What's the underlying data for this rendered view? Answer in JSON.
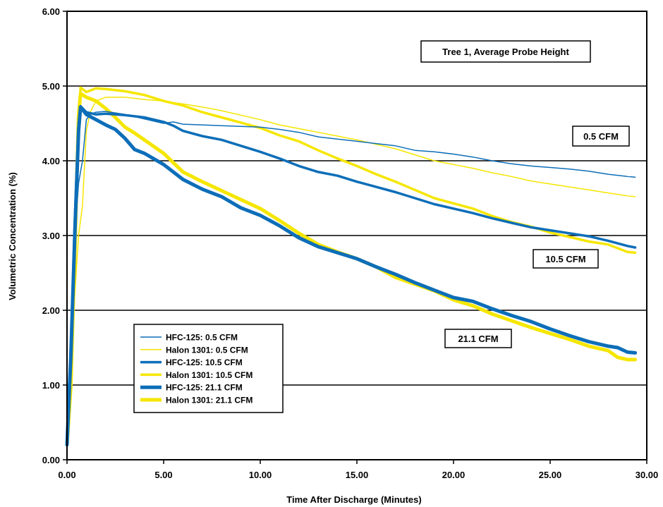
{
  "chart_data": {
    "type": "line",
    "xlabel": "Time After Discharge (Minutes)",
    "ylabel": "Volumetric Concentration (%)",
    "xlim": [
      0,
      30
    ],
    "ylim": [
      0,
      6
    ],
    "x_ticks": [
      "0.00",
      "5.00",
      "10.00",
      "15.00",
      "20.00",
      "25.00",
      "30.00"
    ],
    "y_ticks": [
      "0.00",
      "1.00",
      "2.00",
      "3.00",
      "4.00",
      "5.00",
      "6.00"
    ],
    "grid": "horizontal",
    "legend_position": "bottom-left",
    "annotations": [
      "Tree 1, Average Probe Height",
      "0.5 CFM",
      "10.5 CFM",
      "21.1 CFM"
    ],
    "colors": {
      "hfc": "#0d6eb8",
      "halon": "#f5e600"
    },
    "series": [
      {
        "name": "HFC-125: 0.5 CFM",
        "color": "#0d6eb8",
        "weight": "thin",
        "points": [
          [
            0,
            0.2
          ],
          [
            0.2,
            1.5
          ],
          [
            0.4,
            3.0
          ],
          [
            0.6,
            3.7
          ],
          [
            0.8,
            4.0
          ],
          [
            1.0,
            4.55
          ],
          [
            1.2,
            4.62
          ],
          [
            1.5,
            4.65
          ],
          [
            2,
            4.66
          ],
          [
            3,
            4.62
          ],
          [
            4,
            4.56
          ],
          [
            5,
            4.5
          ],
          [
            5.5,
            4.52
          ],
          [
            6,
            4.49
          ],
          [
            7,
            4.48
          ],
          [
            8,
            4.47
          ],
          [
            9,
            4.46
          ],
          [
            10,
            4.45
          ],
          [
            11,
            4.42
          ],
          [
            12,
            4.38
          ],
          [
            13,
            4.32
          ],
          [
            14,
            4.29
          ],
          [
            15,
            4.26
          ],
          [
            16,
            4.23
          ],
          [
            17,
            4.2
          ],
          [
            18,
            4.14
          ],
          [
            19,
            4.12
          ],
          [
            20,
            4.09
          ],
          [
            21,
            4.05
          ],
          [
            22,
            4.0
          ],
          [
            23,
            3.96
          ],
          [
            24,
            3.93
          ],
          [
            25,
            3.91
          ],
          [
            26,
            3.89
          ],
          [
            27,
            3.86
          ],
          [
            28,
            3.82
          ],
          [
            29,
            3.79
          ],
          [
            29.4,
            3.78
          ]
        ]
      },
      {
        "name": "Halon 1301: 0.5 CFM",
        "color": "#f5e600",
        "weight": "thin",
        "points": [
          [
            0,
            0.2
          ],
          [
            0.2,
            1.0
          ],
          [
            0.4,
            2.2
          ],
          [
            0.6,
            3.0
          ],
          [
            0.8,
            3.4
          ],
          [
            1.0,
            4.4
          ],
          [
            1.2,
            4.65
          ],
          [
            1.5,
            4.8
          ],
          [
            2,
            4.85
          ],
          [
            3,
            4.85
          ],
          [
            4,
            4.82
          ],
          [
            5,
            4.8
          ],
          [
            6,
            4.76
          ],
          [
            7,
            4.72
          ],
          [
            8,
            4.67
          ],
          [
            9,
            4.61
          ],
          [
            10,
            4.55
          ],
          [
            11,
            4.48
          ],
          [
            12,
            4.43
          ],
          [
            13,
            4.38
          ],
          [
            14,
            4.33
          ],
          [
            15,
            4.28
          ],
          [
            16,
            4.22
          ],
          [
            17,
            4.16
          ],
          [
            18,
            4.08
          ],
          [
            19,
            4.0
          ],
          [
            20,
            3.95
          ],
          [
            21,
            3.9
          ],
          [
            22,
            3.84
          ],
          [
            23,
            3.79
          ],
          [
            24,
            3.73
          ],
          [
            25,
            3.69
          ],
          [
            26,
            3.65
          ],
          [
            27,
            3.61
          ],
          [
            28,
            3.57
          ],
          [
            29,
            3.53
          ],
          [
            29.4,
            3.52
          ]
        ]
      },
      {
        "name": "HFC-125: 10.5 CFM",
        "color": "#0d6eb8",
        "weight": "medium",
        "points": [
          [
            0,
            0.2
          ],
          [
            0.2,
            1.5
          ],
          [
            0.4,
            3.2
          ],
          [
            0.6,
            4.5
          ],
          [
            0.7,
            4.73
          ],
          [
            1,
            4.65
          ],
          [
            1.5,
            4.62
          ],
          [
            2,
            4.63
          ],
          [
            3,
            4.61
          ],
          [
            4,
            4.58
          ],
          [
            5,
            4.52
          ],
          [
            5.5,
            4.47
          ],
          [
            6,
            4.4
          ],
          [
            7,
            4.33
          ],
          [
            8,
            4.28
          ],
          [
            9,
            4.2
          ],
          [
            10,
            4.12
          ],
          [
            11,
            4.03
          ],
          [
            12,
            3.93
          ],
          [
            13,
            3.85
          ],
          [
            14,
            3.8
          ],
          [
            15,
            3.72
          ],
          [
            16,
            3.65
          ],
          [
            17,
            3.58
          ],
          [
            18,
            3.5
          ],
          [
            19,
            3.42
          ],
          [
            20,
            3.36
          ],
          [
            21,
            3.3
          ],
          [
            22,
            3.23
          ],
          [
            23,
            3.17
          ],
          [
            24,
            3.11
          ],
          [
            25,
            3.07
          ],
          [
            26,
            3.03
          ],
          [
            27,
            2.99
          ],
          [
            28,
            2.93
          ],
          [
            29,
            2.86
          ],
          [
            29.4,
            2.84
          ]
        ]
      },
      {
        "name": "Halon 1301: 10.5 CFM",
        "color": "#f5e600",
        "weight": "medium",
        "points": [
          [
            0,
            0.25
          ],
          [
            0.2,
            1.2
          ],
          [
            0.4,
            2.5
          ],
          [
            0.6,
            4.4
          ],
          [
            0.7,
            4.98
          ],
          [
            1,
            4.92
          ],
          [
            1.5,
            4.97
          ],
          [
            2,
            4.96
          ],
          [
            3,
            4.93
          ],
          [
            4,
            4.88
          ],
          [
            5,
            4.8
          ],
          [
            6,
            4.74
          ],
          [
            7,
            4.65
          ],
          [
            8,
            4.58
          ],
          [
            9,
            4.51
          ],
          [
            10,
            4.44
          ],
          [
            11,
            4.34
          ],
          [
            12,
            4.26
          ],
          [
            13,
            4.14
          ],
          [
            14,
            4.03
          ],
          [
            15,
            3.93
          ],
          [
            16,
            3.82
          ],
          [
            17,
            3.72
          ],
          [
            18,
            3.61
          ],
          [
            19,
            3.5
          ],
          [
            20,
            3.43
          ],
          [
            21,
            3.36
          ],
          [
            22,
            3.26
          ],
          [
            23,
            3.18
          ],
          [
            24,
            3.12
          ],
          [
            25,
            3.04
          ],
          [
            26,
            2.98
          ],
          [
            27,
            2.92
          ],
          [
            28,
            2.88
          ],
          [
            29,
            2.78
          ],
          [
            29.4,
            2.77
          ]
        ]
      },
      {
        "name": "HFC-125: 21.1 CFM",
        "color": "#0d6eb8",
        "weight": "thick",
        "points": [
          [
            0,
            0.2
          ],
          [
            0.2,
            1.4
          ],
          [
            0.4,
            3.0
          ],
          [
            0.6,
            4.4
          ],
          [
            0.7,
            4.72
          ],
          [
            1,
            4.62
          ],
          [
            1.5,
            4.55
          ],
          [
            2,
            4.48
          ],
          [
            2.5,
            4.42
          ],
          [
            3,
            4.3
          ],
          [
            3.5,
            4.15
          ],
          [
            4,
            4.1
          ],
          [
            5,
            3.95
          ],
          [
            6,
            3.75
          ],
          [
            7,
            3.62
          ],
          [
            8,
            3.52
          ],
          [
            9,
            3.37
          ],
          [
            10,
            3.27
          ],
          [
            11,
            3.13
          ],
          [
            12,
            2.97
          ],
          [
            13,
            2.85
          ],
          [
            14,
            2.77
          ],
          [
            15,
            2.69
          ],
          [
            16,
            2.58
          ],
          [
            17,
            2.48
          ],
          [
            18,
            2.37
          ],
          [
            19,
            2.27
          ],
          [
            20,
            2.17
          ],
          [
            21,
            2.12
          ],
          [
            22,
            2.02
          ],
          [
            23,
            1.93
          ],
          [
            24,
            1.85
          ],
          [
            25,
            1.75
          ],
          [
            26,
            1.66
          ],
          [
            27,
            1.58
          ],
          [
            28,
            1.52
          ],
          [
            28.5,
            1.5
          ],
          [
            29,
            1.44
          ],
          [
            29.4,
            1.43
          ]
        ]
      },
      {
        "name": "Halon 1301: 21.1 CFM",
        "color": "#f5e600",
        "weight": "thick",
        "points": [
          [
            0,
            0.2
          ],
          [
            0.2,
            1.0
          ],
          [
            0.4,
            2.8
          ],
          [
            0.6,
            4.6
          ],
          [
            0.7,
            4.9
          ],
          [
            1,
            4.85
          ],
          [
            1.5,
            4.8
          ],
          [
            2,
            4.7
          ],
          [
            2.5,
            4.58
          ],
          [
            3,
            4.45
          ],
          [
            3.5,
            4.37
          ],
          [
            4,
            4.28
          ],
          [
            5,
            4.1
          ],
          [
            6,
            3.85
          ],
          [
            7,
            3.72
          ],
          [
            8,
            3.6
          ],
          [
            9,
            3.48
          ],
          [
            10,
            3.36
          ],
          [
            11,
            3.2
          ],
          [
            12,
            3.03
          ],
          [
            13,
            2.88
          ],
          [
            14,
            2.78
          ],
          [
            15,
            2.69
          ],
          [
            16,
            2.58
          ],
          [
            17,
            2.44
          ],
          [
            18,
            2.35
          ],
          [
            19,
            2.26
          ],
          [
            20,
            2.14
          ],
          [
            21,
            2.06
          ],
          [
            22,
            1.95
          ],
          [
            23,
            1.86
          ],
          [
            24,
            1.77
          ],
          [
            25,
            1.69
          ],
          [
            26,
            1.61
          ],
          [
            27,
            1.52
          ],
          [
            28,
            1.46
          ],
          [
            28.5,
            1.37
          ],
          [
            29,
            1.34
          ],
          [
            29.4,
            1.34
          ]
        ]
      }
    ]
  }
}
